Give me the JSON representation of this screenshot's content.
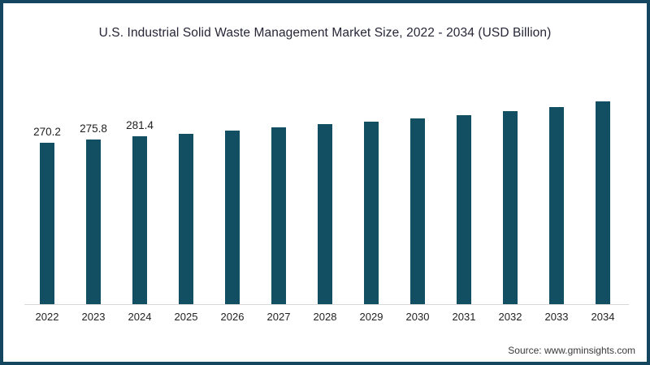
{
  "page": {
    "source": "Source: www.gminsights.com"
  },
  "chart_data": {
    "type": "bar",
    "title": "U.S. Industrial Solid Waste Management Market Size, 2022 - 2034 (USD Billion)",
    "xlabel": "",
    "ylabel": "",
    "categories": [
      "2022",
      "2023",
      "2024",
      "2025",
      "2026",
      "2027",
      "2028",
      "2029",
      "2030",
      "2031",
      "2032",
      "2033",
      "2034"
    ],
    "values": [
      270.2,
      275.8,
      281.4,
      285.2,
      291.6,
      296.8,
      301.5,
      305.6,
      311.0,
      316.9,
      324.0,
      330.8,
      339.6
    ],
    "data_labels_shown": [
      true,
      true,
      true,
      false,
      false,
      false,
      false,
      false,
      false,
      false,
      false,
      false,
      false
    ],
    "shown_label_texts": [
      "270.2",
      "275.8",
      "281.4"
    ],
    "ylim": [
      0,
      374
    ],
    "grid": false,
    "legend_position": "none",
    "bar_color": "#134f63",
    "axis_line_color": "#d8d8d8",
    "frame_border_color": "#154660",
    "title_color": "#262637",
    "label_color": "#1e1e1e"
  }
}
